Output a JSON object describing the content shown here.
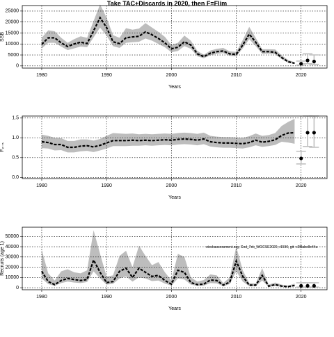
{
  "title": "Take TAC+Discards in 2020, then F=Flim",
  "annotation": "stockassessment.org, Cod_7ek_WGCSE2020, r1590, git: c2f8abc8e44a",
  "colors": {
    "band": "#bdbdbd",
    "median": "#000000",
    "projection_band": "#d9d9d9",
    "projection_whisker": "#bdbdbd"
  },
  "chart_data": [
    {
      "type": "line",
      "ylabel": "SSB",
      "xlabel": "Years",
      "xlim": [
        1977,
        2024
      ],
      "ylim": [
        -1000,
        27500
      ],
      "xticks": [
        1980,
        1990,
        2000,
        2010,
        2020
      ],
      "yticks": [
        0,
        5000,
        10000,
        15000,
        20000,
        25000
      ],
      "grid": true,
      "years": [
        1980,
        1981,
        1982,
        1983,
        1984,
        1985,
        1986,
        1987,
        1988,
        1989,
        1990,
        1991,
        1992,
        1993,
        1994,
        1995,
        1996,
        1997,
        1998,
        1999,
        2000,
        2001,
        2002,
        2003,
        2004,
        2005,
        2006,
        2007,
        2008,
        2009,
        2010,
        2011,
        2012,
        2013,
        2014,
        2015,
        2016,
        2017,
        2018,
        2019
      ],
      "estimate": [
        9800,
        12800,
        12800,
        10500,
        8800,
        10000,
        10800,
        10200,
        16000,
        22000,
        17500,
        11000,
        10200,
        12800,
        13200,
        13500,
        15500,
        14200,
        12500,
        10500,
        7800,
        8500,
        11000,
        9500,
        5500,
        4200,
        5800,
        6500,
        6800,
        5500,
        5200,
        9500,
        14500,
        10800,
        6500,
        6500,
        6200,
        3800,
        1900,
        1200
      ],
      "lower": [
        8000,
        10500,
        10500,
        8800,
        7200,
        8000,
        8800,
        8500,
        13000,
        17500,
        13800,
        9000,
        8200,
        10500,
        10800,
        11000,
        12500,
        11500,
        10000,
        8500,
        6200,
        6800,
        9000,
        7800,
        4400,
        3500,
        4800,
        5500,
        5800,
        4600,
        4400,
        8000,
        12200,
        9000,
        5500,
        5600,
        5300,
        3100,
        1400,
        900
      ],
      "upper": [
        12800,
        16200,
        15800,
        12800,
        10500,
        12200,
        13500,
        12800,
        20500,
        28000,
        22000,
        14000,
        12800,
        17200,
        16500,
        17000,
        19500,
        17500,
        15500,
        13200,
        9500,
        10500,
        13800,
        11500,
        6800,
        5100,
        7000,
        7800,
        8200,
        6600,
        6400,
        11800,
        17800,
        12800,
        7600,
        7600,
        7500,
        4800,
        2700,
        1700
      ],
      "projection": {
        "years": [
          2020,
          2021,
          2022
        ],
        "median": [
          1000,
          2500,
          2000
        ],
        "lower": [
          500,
          1200,
          900
        ],
        "upper": [
          1700,
          4500,
          3800
        ],
        "whisker_lower": [
          400,
          1000,
          700
        ],
        "whisker_upper": [
          2200,
          5500,
          5000
        ]
      }
    },
    {
      "type": "line",
      "ylabel": "F₂₋₅",
      "xlabel": "Years",
      "xlim": [
        1977,
        2024
      ],
      "ylim": [
        -0.03,
        1.55
      ],
      "xticks": [
        1980,
        1990,
        2000,
        2010,
        2020
      ],
      "yticks": [
        0.0,
        0.5,
        1.0,
        1.5
      ],
      "ytick_labels": [
        "0.0",
        "0.5",
        "1.0",
        "1.5"
      ],
      "grid": true,
      "years": [
        1980,
        1981,
        1982,
        1983,
        1984,
        1985,
        1986,
        1987,
        1988,
        1989,
        1990,
        1991,
        1992,
        1993,
        1994,
        1995,
        1996,
        1997,
        1998,
        1999,
        2000,
        2001,
        2002,
        2003,
        2004,
        2005,
        2006,
        2007,
        2008,
        2009,
        2010,
        2011,
        2012,
        2013,
        2014,
        2015,
        2016,
        2017,
        2018,
        2019
      ],
      "estimate": [
        0.9,
        0.88,
        0.83,
        0.83,
        0.76,
        0.76,
        0.79,
        0.8,
        0.77,
        0.81,
        0.87,
        0.93,
        0.93,
        0.93,
        0.94,
        0.93,
        0.94,
        0.93,
        0.94,
        0.95,
        0.94,
        0.96,
        0.97,
        0.96,
        0.94,
        0.97,
        0.9,
        0.88,
        0.87,
        0.87,
        0.86,
        0.85,
        0.88,
        0.94,
        0.89,
        0.91,
        0.95,
        1.06,
        1.12,
        1.13
      ],
      "lower": [
        0.74,
        0.73,
        0.68,
        0.69,
        0.63,
        0.63,
        0.66,
        0.67,
        0.64,
        0.68,
        0.73,
        0.79,
        0.79,
        0.79,
        0.8,
        0.8,
        0.81,
        0.8,
        0.81,
        0.82,
        0.81,
        0.83,
        0.84,
        0.83,
        0.81,
        0.84,
        0.78,
        0.76,
        0.75,
        0.75,
        0.74,
        0.73,
        0.76,
        0.81,
        0.77,
        0.79,
        0.82,
        0.9,
        0.88,
        0.85
      ],
      "upper": [
        1.08,
        1.05,
        1.0,
        0.99,
        0.92,
        0.92,
        0.96,
        0.96,
        0.93,
        0.97,
        1.05,
        1.12,
        1.11,
        1.1,
        1.11,
        1.09,
        1.1,
        1.09,
        1.1,
        1.11,
        1.1,
        1.12,
        1.13,
        1.12,
        1.1,
        1.13,
        1.05,
        1.03,
        1.02,
        1.02,
        1.01,
        1.0,
        1.04,
        1.11,
        1.05,
        1.07,
        1.12,
        1.3,
        1.4,
        1.48
      ],
      "projection": {
        "years": [
          2020,
          2021,
          2022
        ],
        "median": [
          0.48,
          1.13,
          1.13
        ],
        "lower": [
          0.36,
          0.82,
          0.8
        ],
        "upper": [
          0.64,
          1.5,
          1.5
        ],
        "whisker_lower": [
          0.34,
          0.78,
          0.76
        ],
        "whisker_upper": [
          0.66,
          1.55,
          1.55
        ]
      }
    },
    {
      "type": "line",
      "ylabel": "Recruits (age 1)",
      "xlabel": "Years",
      "xlim": [
        1977,
        2024
      ],
      "ylim": [
        -2000,
        59000
      ],
      "xticks": [
        1980,
        1990,
        2000,
        2010,
        2020
      ],
      "yticks": [
        0,
        10000,
        20000,
        30000,
        40000,
        50000
      ],
      "grid": true,
      "years": [
        1980,
        1981,
        1982,
        1983,
        1984,
        1985,
        1986,
        1987,
        1988,
        1989,
        1990,
        1991,
        1992,
        1993,
        1994,
        1995,
        1996,
        1997,
        1998,
        1999,
        2000,
        2001,
        2002,
        2003,
        2004,
        2005,
        2006,
        2007,
        2008,
        2009,
        2010,
        2011,
        2012,
        2013,
        2014,
        2015,
        2016,
        2017,
        2018,
        2019
      ],
      "estimate": [
        16000,
        6000,
        3000,
        7000,
        9000,
        8000,
        7000,
        8000,
        27000,
        15000,
        5000,
        6000,
        16000,
        19000,
        10000,
        19000,
        15000,
        11000,
        12000,
        7000,
        3500,
        17000,
        15000,
        5000,
        3000,
        3500,
        7500,
        7000,
        2500,
        5500,
        26000,
        11000,
        2500,
        2500,
        12000,
        1500,
        3000,
        1500,
        1000,
        2200
      ],
      "lower": [
        9000,
        3500,
        1800,
        4500,
        6000,
        5000,
        4500,
        5500,
        16000,
        9000,
        3000,
        3800,
        9000,
        11000,
        6000,
        10000,
        9000,
        6500,
        7000,
        4000,
        2000,
        9000,
        8000,
        3000,
        1800,
        2000,
        4500,
        4200,
        1500,
        3500,
        16000,
        6000,
        1500,
        1500,
        7000,
        900,
        1800,
        900,
        600,
        1200
      ],
      "upper": [
        37000,
        14000,
        7000,
        16000,
        18000,
        15000,
        14000,
        17000,
        56000,
        33000,
        11000,
        12000,
        31000,
        36000,
        20000,
        41000,
        31000,
        22000,
        25000,
        15000,
        7000,
        33000,
        30000,
        10000,
        6000,
        7500,
        13000,
        12000,
        4500,
        10000,
        40000,
        17000,
        4500,
        4000,
        19000,
        3000,
        5000,
        3000,
        2000,
        4000
      ],
      "projection": {
        "years": [
          2020,
          2021,
          2022
        ],
        "median": [
          1800,
          1800,
          1800
        ],
        "lower": [
          900,
          900,
          900
        ],
        "upper": [
          3600,
          3600,
          3600
        ],
        "whisker_lower": [
          600,
          600,
          600
        ],
        "whisker_upper": [
          4800,
          4800,
          4800
        ]
      }
    }
  ]
}
